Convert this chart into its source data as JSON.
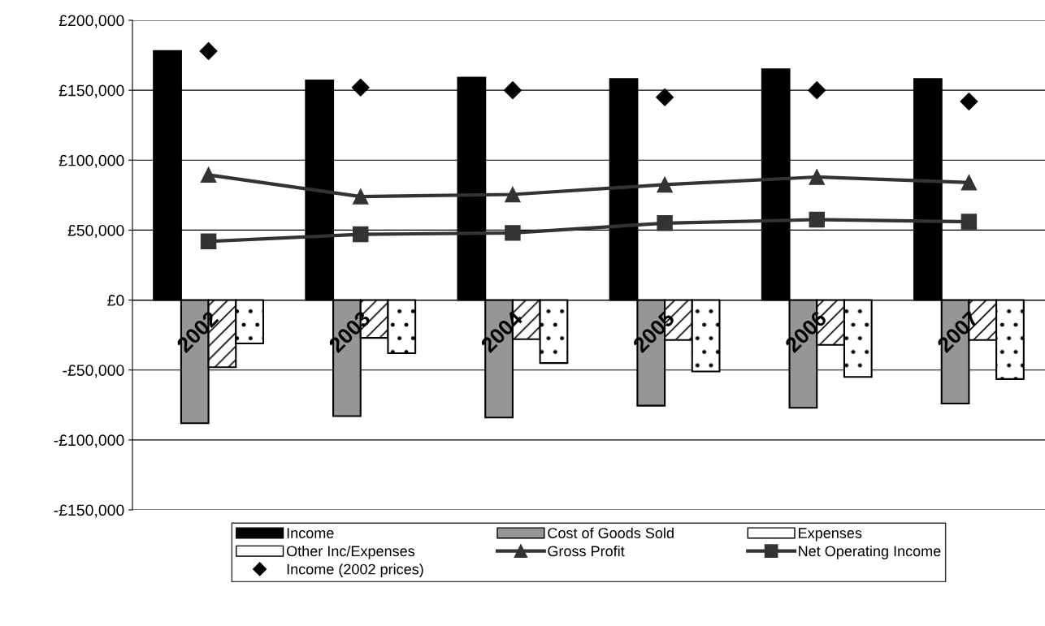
{
  "chart_data": {
    "type": "bar",
    "categories": [
      "2002",
      "2003",
      "2004",
      "2005",
      "2006",
      "2007"
    ],
    "series": [
      {
        "name": "Income",
        "color": "#000000",
        "values": [
          178000,
          157000,
          159000,
          158000,
          165000,
          158000
        ]
      },
      {
        "name": "Cost of Goods Sold",
        "color": "#969696",
        "values": [
          -88000,
          -83000,
          -84000,
          -75500,
          -77000,
          -74000
        ]
      },
      {
        "name": "Expenses",
        "color": "#ffffff",
        "values": [
          -48000,
          -27000,
          -28000,
          -28500,
          -32000,
          -28500
        ]
      },
      {
        "name": "Other Inc/Expenses",
        "color": "#ffffff",
        "values": [
          -31000,
          -38000,
          -45000,
          -51000,
          -55000,
          -56500
        ]
      },
      {
        "name": "Gross Profit",
        "type": "line",
        "color": "#333333",
        "marker": "triangle",
        "values": [
          89500,
          74000,
          75500,
          82500,
          88000,
          84000
        ]
      },
      {
        "name": "Net Operating Income",
        "type": "line",
        "color": "#333333",
        "marker": "square",
        "values": [
          42000,
          47000,
          48000,
          55000,
          57500,
          56000
        ]
      },
      {
        "name": "Income (2002 prices)",
        "type": "scatter",
        "color": "#000000",
        "marker": "diamond",
        "values": [
          178000,
          152000,
          150000,
          145000,
          150000,
          142000
        ]
      }
    ],
    "ylim": [
      -150000,
      200000
    ],
    "yticks": [
      {
        "value": -150000,
        "label": "-£150,000"
      },
      {
        "value": -100000,
        "label": "-£100,000"
      },
      {
        "value": -50000,
        "label": "-£50,000"
      },
      {
        "value": 0,
        "label": "£0"
      },
      {
        "value": 50000,
        "label": "£50,000"
      },
      {
        "value": 100000,
        "label": "£100,000"
      },
      {
        "value": 150000,
        "label": "£150,000"
      },
      {
        "value": 200000,
        "label": "£200,000"
      }
    ],
    "grid": "y",
    "legend": "bottom"
  }
}
